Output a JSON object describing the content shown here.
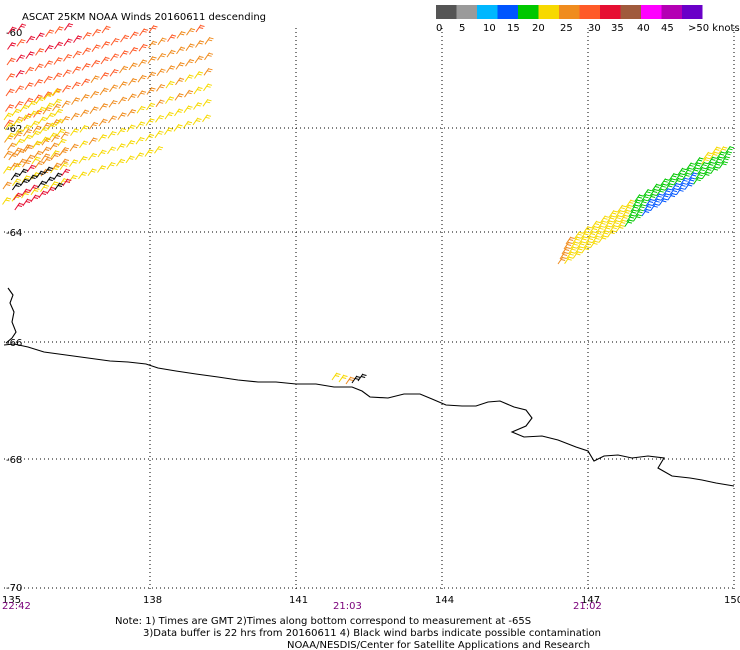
{
  "title": "ASCAT 25KM NOAA Winds 20160611 descending",
  "legend": {
    "colors": [
      "#555555",
      "#9a9a9a",
      "#00b7ff",
      "#0055ff",
      "#00c800",
      "#f7d900",
      "#f08c1e",
      "#ff5a28",
      "#e60f32",
      "#a05a3c",
      "#ff00ff",
      "#b400b4",
      "#6a00c8"
    ],
    "labels": [
      "0",
      "5",
      "10",
      "15",
      "20",
      "25",
      "30",
      "35",
      "40",
      "45",
      ">50 knots"
    ]
  },
  "lat_labels": [
    "-60",
    "-62",
    "-64",
    "-66",
    "-68",
    "-70"
  ],
  "lon_labels": [
    "135",
    "138",
    "141",
    "144",
    "147",
    "150"
  ],
  "times": [
    "22:42",
    "21:03",
    "21:02"
  ],
  "notes": [
    "Note: 1) Times are GMT 2)Times along bottom correspond to measurement at -65S",
    "3)Data buffer is 22 hrs from 20160611 4) Black wind barbs indicate possible contamination",
    "NOAA/NESDIS/Center for Satellite Applications and Research"
  ]
}
